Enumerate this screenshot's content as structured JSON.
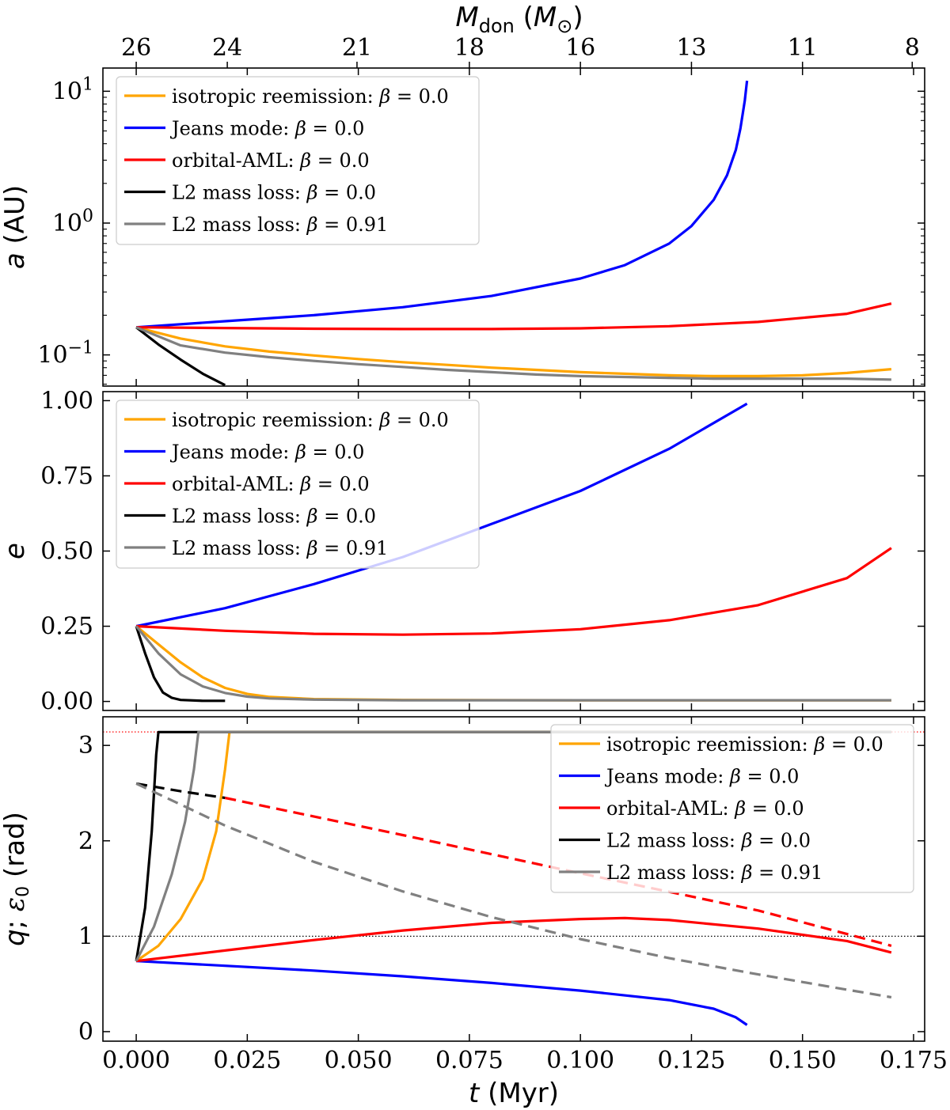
{
  "chart_data": {
    "type": "line",
    "xlabel": "t (Myr)",
    "x_range": [
      -0.0075,
      0.1775
    ],
    "x_ticks": [
      0.0,
      0.025,
      0.05,
      0.075,
      0.1,
      0.125,
      0.15,
      0.175
    ],
    "x_tick_labels": [
      "0.000",
      "0.025",
      "0.050",
      "0.075",
      "0.100",
      "0.125",
      "0.150",
      "0.175"
    ],
    "top_axis": {
      "label": "M_don (M_sun)",
      "label_text": "Mdon (M⊙)",
      "ticks": [
        {
          "t": 0.0,
          "label": "26"
        },
        {
          "t": 0.0205,
          "label": "24"
        },
        {
          "t": 0.0497,
          "label": "21"
        },
        {
          "t": 0.075,
          "label": "18"
        },
        {
          "t": 0.1,
          "label": "16"
        },
        {
          "t": 0.125,
          "label": "13"
        },
        {
          "t": 0.15,
          "label": "11"
        },
        {
          "t": 0.1747,
          "label": "8"
        }
      ]
    },
    "series_styles": {
      "isotropic": {
        "name": "isotropic reemission: β = 0.0",
        "color": "#ffa500"
      },
      "jeans": {
        "name": "Jeans mode: β = 0.0",
        "color": "#0000ff"
      },
      "oaml": {
        "name": "orbital-AML: β = 0.0",
        "color": "#ff0000"
      },
      "l2_0": {
        "name": "L2 mass loss: β = 0.0",
        "color": "#000000"
      },
      "l2_091": {
        "name": "L2 mass loss: β = 0.91",
        "color": "#808080"
      }
    },
    "panels": [
      {
        "id": "a",
        "ylabel": "a (AU)",
        "yscale": "log",
        "ylim": [
          0.058,
          15
        ],
        "yticks": [
          0.1,
          1,
          10
        ],
        "ytick_labels": [
          "10^-1",
          "10^0",
          "10^1"
        ],
        "legend_position": "upper-left",
        "series": [
          {
            "key": "isotropic",
            "x": [
              0,
              0.01,
              0.02,
              0.03,
              0.04,
              0.05,
              0.06,
              0.07,
              0.08,
              0.09,
              0.1,
              0.11,
              0.12,
              0.13,
              0.14,
              0.15,
              0.16,
              0.17
            ],
            "y": [
              0.162,
              0.133,
              0.116,
              0.106,
              0.099,
              0.093,
              0.088,
              0.084,
              0.08,
              0.077,
              0.074,
              0.072,
              0.07,
              0.069,
              0.069,
              0.07,
              0.073,
              0.078
            ]
          },
          {
            "key": "jeans",
            "x": [
              0,
              0.02,
              0.04,
              0.06,
              0.08,
              0.1,
              0.11,
              0.12,
              0.125,
              0.13,
              0.133,
              0.135,
              0.136,
              0.137,
              0.1375
            ],
            "y": [
              0.162,
              0.18,
              0.2,
              0.23,
              0.28,
              0.38,
              0.48,
              0.7,
              0.95,
              1.5,
              2.3,
              3.6,
              5.2,
              8.5,
              12.0
            ]
          },
          {
            "key": "oaml",
            "x": [
              0,
              0.02,
              0.04,
              0.06,
              0.08,
              0.1,
              0.12,
              0.14,
              0.16,
              0.17
            ],
            "y": [
              0.162,
              0.16,
              0.158,
              0.157,
              0.157,
              0.159,
              0.165,
              0.178,
              0.205,
              0.245
            ]
          },
          {
            "key": "l2_0",
            "x": [
              0,
              0.005,
              0.01,
              0.015,
              0.02
            ],
            "y": [
              0.162,
              0.12,
              0.092,
              0.072,
              0.059
            ]
          },
          {
            "key": "l2_091",
            "x": [
              0,
              0.01,
              0.02,
              0.03,
              0.04,
              0.05,
              0.06,
              0.07,
              0.08,
              0.09,
              0.1,
              0.11,
              0.12,
              0.13,
              0.14,
              0.15,
              0.16,
              0.17
            ],
            "y": [
              0.162,
              0.118,
              0.104,
              0.096,
              0.09,
              0.085,
              0.081,
              0.077,
              0.074,
              0.071,
              0.069,
              0.068,
              0.067,
              0.066,
              0.066,
              0.066,
              0.066,
              0.065
            ]
          }
        ]
      },
      {
        "id": "e",
        "ylabel": "e",
        "yscale": "linear",
        "ylim": [
          -0.03,
          1.03
        ],
        "yticks": [
          0.0,
          0.25,
          0.5,
          0.75,
          1.0
        ],
        "ytick_labels": [
          "0.00",
          "0.25",
          "0.50",
          "0.75",
          "1.00"
        ],
        "legend_position": "upper-left",
        "series": [
          {
            "key": "isotropic",
            "x": [
              0,
              0.005,
              0.01,
              0.015,
              0.02,
              0.025,
              0.03,
              0.04,
              0.06,
              0.1,
              0.17
            ],
            "y": [
              0.25,
              0.19,
              0.13,
              0.08,
              0.045,
              0.025,
              0.015,
              0.008,
              0.005,
              0.004,
              0.004
            ]
          },
          {
            "key": "jeans",
            "x": [
              0,
              0.02,
              0.04,
              0.06,
              0.08,
              0.1,
              0.12,
              0.1375
            ],
            "y": [
              0.25,
              0.31,
              0.39,
              0.48,
              0.59,
              0.7,
              0.84,
              0.99
            ]
          },
          {
            "key": "oaml",
            "x": [
              0,
              0.02,
              0.04,
              0.06,
              0.08,
              0.1,
              0.12,
              0.14,
              0.16,
              0.17
            ],
            "y": [
              0.25,
              0.235,
              0.225,
              0.222,
              0.226,
              0.24,
              0.27,
              0.32,
              0.41,
              0.51
            ]
          },
          {
            "key": "l2_0",
            "x": [
              0,
              0.002,
              0.004,
              0.006,
              0.008,
              0.01,
              0.015,
              0.02
            ],
            "y": [
              0.25,
              0.16,
              0.08,
              0.03,
              0.012,
              0.005,
              0.002,
              0.002
            ]
          },
          {
            "key": "l2_091",
            "x": [
              0,
              0.005,
              0.01,
              0.015,
              0.02,
              0.025,
              0.03,
              0.04,
              0.06,
              0.1,
              0.17
            ],
            "y": [
              0.25,
              0.16,
              0.09,
              0.05,
              0.028,
              0.016,
              0.01,
              0.006,
              0.004,
              0.004,
              0.004
            ]
          }
        ]
      },
      {
        "id": "q",
        "ylabel": "q; ε0 (rad)",
        "yscale": "linear",
        "ylim": [
          -0.1,
          3.3
        ],
        "yticks": [
          0,
          1,
          2,
          3
        ],
        "ytick_labels": [
          "0",
          "1",
          "2",
          "3"
        ],
        "legend_position": "upper-right",
        "reference_lines": [
          {
            "y": 3.1416,
            "color": "#ff0000",
            "style": "dotted"
          },
          {
            "y": 1.0,
            "color": "#000000",
            "style": "dotted"
          }
        ],
        "series": [
          {
            "key": "isotropic",
            "x": [
              0,
              0.005,
              0.01,
              0.015,
              0.018,
              0.02,
              0.021,
              0.17
            ],
            "y": [
              0.74,
              0.9,
              1.18,
              1.6,
              2.1,
              2.75,
              3.14,
              3.14
            ]
          },
          {
            "key": "jeans",
            "x": [
              0,
              0.02,
              0.04,
              0.06,
              0.08,
              0.1,
              0.12,
              0.13,
              0.135,
              0.1375
            ],
            "y": [
              0.74,
              0.69,
              0.64,
              0.58,
              0.51,
              0.43,
              0.33,
              0.24,
              0.15,
              0.07
            ]
          },
          {
            "key": "oaml",
            "x": [
              0,
              0.02,
              0.04,
              0.06,
              0.08,
              0.1,
              0.11,
              0.12,
              0.14,
              0.16,
              0.17
            ],
            "y": [
              0.74,
              0.85,
              0.96,
              1.06,
              1.14,
              1.18,
              1.19,
              1.17,
              1.08,
              0.95,
              0.83
            ]
          },
          {
            "key": "l2_0",
            "x": [
              0,
              0.002,
              0.0035,
              0.0045,
              0.005,
              0.17
            ],
            "y": [
              0.74,
              1.3,
              2.1,
              2.9,
              3.14,
              3.14
            ]
          },
          {
            "key": "l2_091",
            "x": [
              0,
              0.004,
              0.008,
              0.011,
              0.013,
              0.014,
              0.17
            ],
            "y": [
              0.74,
              1.1,
              1.65,
              2.2,
              2.75,
              3.14,
              3.14
            ]
          }
        ],
        "dashed_series": [
          {
            "key": "l2_0",
            "x": [
              0,
              0.01,
              0.02
            ],
            "y": [
              2.6,
              2.52,
              2.45
            ]
          },
          {
            "key": "oaml",
            "x": [
              0.02,
              0.06,
              0.1,
              0.14,
              0.17
            ],
            "y": [
              2.45,
              2.06,
              1.66,
              1.27,
              0.9
            ]
          },
          {
            "key": "l2_091",
            "x": [
              0,
              0.01,
              0.02,
              0.04,
              0.06,
              0.08,
              0.1,
              0.12,
              0.14,
              0.16,
              0.17
            ],
            "y": [
              2.6,
              2.38,
              2.16,
              1.78,
              1.47,
              1.2,
              0.97,
              0.77,
              0.6,
              0.44,
              0.36
            ]
          }
        ]
      }
    ]
  }
}
